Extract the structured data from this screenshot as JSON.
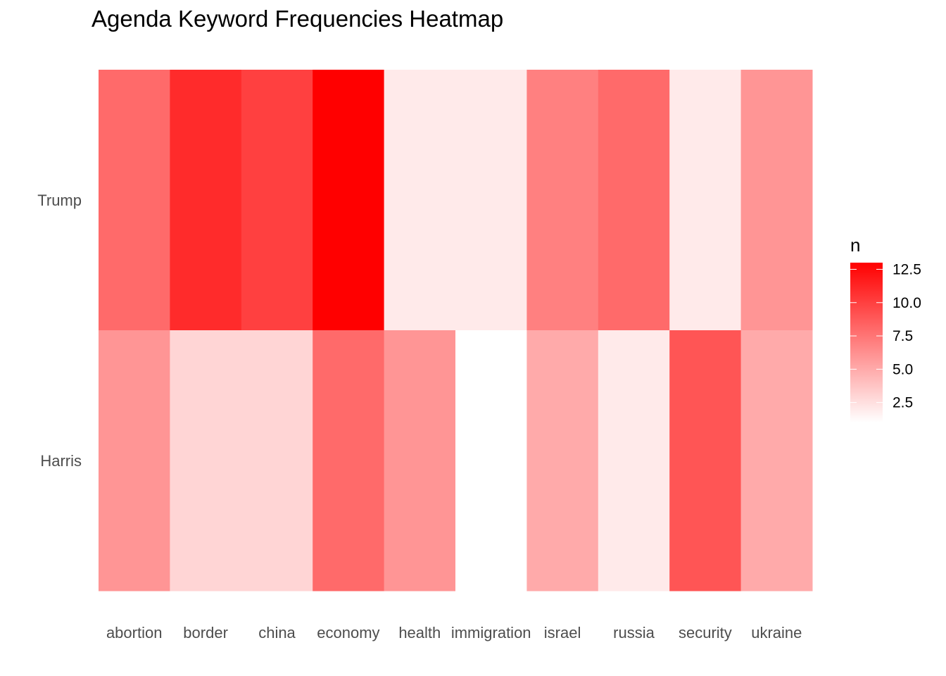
{
  "chart_data": {
    "type": "heatmap",
    "title": "Agenda Keyword Frequencies Heatmap",
    "x_categories": [
      "abortion",
      "border",
      "china",
      "economy",
      "health",
      "immigration",
      "israel",
      "russia",
      "security",
      "ukraine"
    ],
    "y_categories": [
      "Trump",
      "Harris"
    ],
    "values": [
      [
        8,
        11,
        10,
        13,
        2,
        2,
        7,
        8,
        2,
        6
      ],
      [
        6,
        3,
        3,
        8,
        6,
        1,
        5,
        2,
        9,
        5
      ]
    ],
    "legend": {
      "title": "n",
      "ticks": [
        2.5,
        5.0,
        7.5,
        10.0,
        12.5
      ],
      "tick_labels": [
        "2.5",
        "5.0",
        "7.5",
        "10.0",
        "12.5"
      ],
      "range": [
        1,
        13
      ],
      "low_color": "#ffffff",
      "high_color": "#ff0000",
      "placement": "right"
    },
    "grid": false
  }
}
